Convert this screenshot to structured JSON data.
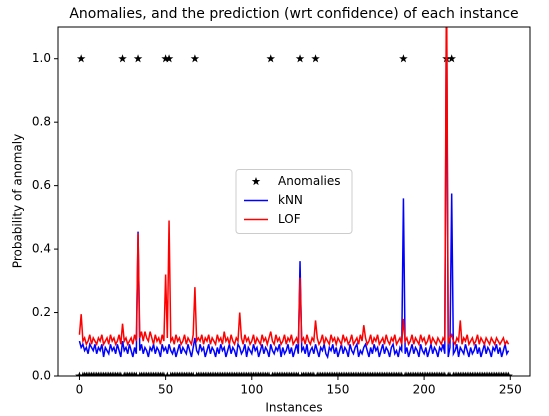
{
  "chart_data": {
    "type": "line",
    "title": "Anomalies, and the prediction (wrt confidence) of each instance",
    "x_label": "Instances",
    "y_label": "Probability of anomaly",
    "legend": "center",
    "xlim": [
      -12.45,
      261.45
    ],
    "ylim": [
      0,
      1.1
    ],
    "xticks": [
      0,
      50,
      100,
      150,
      200,
      250
    ],
    "yticks": [
      {
        "value": 0,
        "label": "0.0"
      },
      {
        "value": 0.2,
        "label": "0.2"
      },
      {
        "value": 0.4,
        "label": "0.4"
      },
      {
        "value": 0.6,
        "label": "0.6"
      },
      {
        "value": 0.8,
        "label": "0.8"
      },
      {
        "value": 1,
        "label": "1.0"
      }
    ],
    "x": [
      0,
      1,
      2,
      3,
      4,
      5,
      6,
      7,
      8,
      9,
      10,
      11,
      12,
      13,
      14,
      15,
      16,
      17,
      18,
      19,
      20,
      21,
      22,
      23,
      24,
      25,
      26,
      27,
      28,
      29,
      30,
      31,
      32,
      33,
      34,
      35,
      36,
      37,
      38,
      39,
      40,
      41,
      42,
      43,
      44,
      45,
      46,
      47,
      48,
      49,
      50,
      51,
      52,
      53,
      54,
      55,
      56,
      57,
      58,
      59,
      60,
      61,
      62,
      63,
      64,
      65,
      66,
      67,
      68,
      69,
      70,
      71,
      72,
      73,
      74,
      75,
      76,
      77,
      78,
      79,
      80,
      81,
      82,
      83,
      84,
      85,
      86,
      87,
      88,
      89,
      90,
      91,
      92,
      93,
      94,
      95,
      96,
      97,
      98,
      99,
      100,
      101,
      102,
      103,
      104,
      105,
      106,
      107,
      108,
      109,
      110,
      111,
      112,
      113,
      114,
      115,
      116,
      117,
      118,
      119,
      120,
      121,
      122,
      123,
      124,
      125,
      126,
      127,
      128,
      129,
      130,
      131,
      132,
      133,
      134,
      135,
      136,
      137,
      138,
      139,
      140,
      141,
      142,
      143,
      144,
      145,
      146,
      147,
      148,
      149,
      150,
      151,
      152,
      153,
      154,
      155,
      156,
      157,
      158,
      159,
      160,
      161,
      162,
      163,
      164,
      165,
      166,
      167,
      168,
      169,
      170,
      171,
      172,
      173,
      174,
      175,
      176,
      177,
      178,
      179,
      180,
      181,
      182,
      183,
      184,
      185,
      186,
      187,
      188,
      189,
      190,
      191,
      192,
      193,
      194,
      195,
      196,
      197,
      198,
      199,
      200,
      201,
      202,
      203,
      204,
      205,
      206,
      207,
      208,
      209,
      210,
      211,
      212,
      213,
      214,
      215,
      216,
      217,
      218,
      219,
      220,
      221,
      222,
      223,
      224,
      225,
      226,
      227,
      228,
      229,
      230,
      231,
      232,
      233,
      234,
      235,
      236,
      237,
      238,
      239,
      240,
      241,
      242,
      243,
      244,
      245,
      246,
      247,
      248,
      249
    ],
    "series": [
      {
        "name": "Anomalies",
        "color": "#000000",
        "marker": "star",
        "values": [
          0,
          1,
          0,
          0,
          0,
          0,
          0,
          0,
          0,
          0,
          0,
          0,
          0,
          0,
          0,
          0,
          0,
          0,
          0,
          0,
          0,
          0,
          0,
          0,
          0,
          1,
          0,
          0,
          0,
          0,
          0,
          0,
          0,
          0,
          1,
          0,
          0,
          0,
          0,
          0,
          0,
          0,
          0,
          0,
          0,
          0,
          0,
          0,
          0,
          0,
          1,
          0,
          1,
          0,
          0,
          0,
          0,
          0,
          0,
          0,
          0,
          0,
          0,
          0,
          0,
          0,
          0,
          1,
          0,
          0,
          0,
          0,
          0,
          0,
          0,
          0,
          0,
          0,
          0,
          0,
          0,
          0,
          0,
          0,
          0,
          0,
          0,
          0,
          0,
          0,
          0,
          0,
          0,
          0,
          0,
          0,
          0,
          0,
          0,
          0,
          0,
          0,
          0,
          0,
          0,
          0,
          0,
          0,
          0,
          0,
          0,
          1,
          0,
          0,
          0,
          0,
          0,
          0,
          0,
          0,
          0,
          0,
          0,
          0,
          0,
          0,
          0,
          0,
          1,
          0,
          0,
          0,
          0,
          0,
          0,
          0,
          0,
          1,
          0,
          0,
          0,
          0,
          0,
          0,
          0,
          0,
          0,
          0,
          0,
          0,
          0,
          0,
          0,
          0,
          0,
          0,
          0,
          0,
          0,
          0,
          0,
          0,
          0,
          0,
          0,
          0,
          0,
          0,
          0,
          0,
          0,
          0,
          0,
          0,
          0,
          0,
          0,
          0,
          0,
          0,
          0,
          0,
          0,
          0,
          0,
          0,
          0,
          0,
          1,
          0,
          0,
          0,
          0,
          0,
          0,
          0,
          0,
          0,
          0,
          0,
          0,
          0,
          0,
          0,
          0,
          0,
          0,
          0,
          0,
          0,
          0,
          0,
          0,
          1,
          0,
          0,
          1,
          0,
          0,
          0,
          0,
          0,
          0,
          0,
          0,
          0,
          0,
          0,
          0,
          0,
          0,
          0,
          0,
          0,
          0,
          0,
          0,
          0,
          0,
          0,
          0,
          0,
          0,
          0,
          0,
          0,
          0,
          0,
          0,
          0
        ]
      },
      {
        "name": "kNN",
        "color": "#0000ff",
        "values": [
          0.11,
          0.09,
          0.1,
          0.08,
          0.09,
          0.07,
          0.1,
          0.09,
          0.08,
          0.1,
          0.07,
          0.09,
          0.08,
          0.1,
          0.06,
          0.09,
          0.08,
          0.07,
          0.1,
          0.08,
          0.09,
          0.07,
          0.1,
          0.08,
          0.06,
          0.11,
          0.08,
          0.09,
          0.07,
          0.1,
          0.08,
          0.06,
          0.09,
          0.07,
          0.455,
          0.08,
          0.1,
          0.07,
          0.09,
          0.08,
          0.06,
          0.09,
          0.08,
          0.1,
          0.07,
          0.09,
          0.08,
          0.06,
          0.1,
          0.08,
          0.09,
          0.07,
          0.1,
          0.08,
          0.07,
          0.09,
          0.06,
          0.08,
          0.1,
          0.07,
          0.09,
          0.08,
          0.07,
          0.1,
          0.08,
          0.06,
          0.09,
          0.12,
          0.08,
          0.07,
          0.1,
          0.08,
          0.09,
          0.06,
          0.08,
          0.1,
          0.07,
          0.09,
          0.08,
          0.06,
          0.09,
          0.07,
          0.1,
          0.08,
          0.09,
          0.06,
          0.08,
          0.1,
          0.07,
          0.09,
          0.08,
          0.06,
          0.1,
          0.09,
          0.07,
          0.08,
          0.1,
          0.06,
          0.09,
          0.08,
          0.07,
          0.1,
          0.08,
          0.09,
          0.06,
          0.08,
          0.1,
          0.07,
          0.09,
          0.08,
          0.06,
          0.1,
          0.08,
          0.07,
          0.09,
          0.08,
          0.1,
          0.06,
          0.09,
          0.07,
          0.08,
          0.1,
          0.07,
          0.09,
          0.06,
          0.08,
          0.1,
          0.07,
          0.362,
          0.08,
          0.09,
          0.07,
          0.1,
          0.06,
          0.08,
          0.09,
          0.07,
          0.1,
          0.08,
          0.06,
          0.09,
          0.08,
          0.1,
          0.07,
          0.06,
          0.09,
          0.08,
          0.1,
          0.07,
          0.09,
          0.06,
          0.08,
          0.1,
          0.07,
          0.09,
          0.08,
          0.06,
          0.1,
          0.08,
          0.07,
          0.09,
          0.1,
          0.06,
          0.08,
          0.07,
          0.09,
          0.1,
          0.08,
          0.06,
          0.09,
          0.07,
          0.1,
          0.08,
          0.09,
          0.06,
          0.08,
          0.1,
          0.07,
          0.09,
          0.08,
          0.06,
          0.09,
          0.1,
          0.07,
          0.08,
          0.06,
          0.09,
          0.08,
          0.56,
          0.07,
          0.09,
          0.06,
          0.08,
          0.1,
          0.07,
          0.09,
          0.08,
          0.06,
          0.1,
          0.08,
          0.07,
          0.09,
          0.06,
          0.08,
          0.1,
          0.07,
          0.09,
          0.08,
          0.06,
          0.09,
          0.08,
          0.1,
          0.07,
          1.2,
          0.06,
          0.09,
          0.575,
          0.07,
          0.08,
          0.1,
          0.06,
          0.09,
          0.08,
          0.07,
          0.1,
          0.08,
          0.06,
          0.09,
          0.07,
          0.08,
          0.1,
          0.07,
          0.09,
          0.06,
          0.08,
          0.1,
          0.07,
          0.09,
          0.08,
          0.06,
          0.09,
          0.08,
          0.1,
          0.07,
          0.09,
          0.06,
          0.08,
          0.1,
          0.07,
          0.08
        ]
      },
      {
        "name": "LOF",
        "color": "#ff0000",
        "values": [
          0.13,
          0.195,
          0.11,
          0.12,
          0.1,
          0.11,
          0.13,
          0.1,
          0.12,
          0.11,
          0.1,
          0.12,
          0.11,
          0.13,
          0.1,
          0.11,
          0.12,
          0.1,
          0.13,
          0.11,
          0.12,
          0.1,
          0.11,
          0.13,
          0.1,
          0.165,
          0.11,
          0.12,
          0.1,
          0.11,
          0.12,
          0.1,
          0.13,
          0.11,
          0.45,
          0.12,
          0.14,
          0.11,
          0.14,
          0.12,
          0.11,
          0.14,
          0.12,
          0.1,
          0.13,
          0.11,
          0.12,
          0.1,
          0.13,
          0.11,
          0.32,
          0.12,
          0.49,
          0.11,
          0.12,
          0.1,
          0.13,
          0.11,
          0.12,
          0.1,
          0.11,
          0.13,
          0.1,
          0.12,
          0.11,
          0.1,
          0.13,
          0.28,
          0.11,
          0.12,
          0.11,
          0.13,
          0.1,
          0.12,
          0.11,
          0.13,
          0.1,
          0.12,
          0.11,
          0.1,
          0.13,
          0.11,
          0.12,
          0.1,
          0.14,
          0.11,
          0.12,
          0.1,
          0.13,
          0.11,
          0.1,
          0.12,
          0.11,
          0.2,
          0.12,
          0.1,
          0.13,
          0.11,
          0.12,
          0.1,
          0.11,
          0.13,
          0.1,
          0.12,
          0.11,
          0.1,
          0.13,
          0.11,
          0.12,
          0.1,
          0.12,
          0.14,
          0.11,
          0.1,
          0.13,
          0.11,
          0.12,
          0.1,
          0.11,
          0.13,
          0.1,
          0.12,
          0.11,
          0.13,
          0.1,
          0.11,
          0.12,
          0.1,
          0.31,
          0.11,
          0.12,
          0.1,
          0.13,
          0.11,
          0.1,
          0.12,
          0.11,
          0.175,
          0.12,
          0.1,
          0.11,
          0.13,
          0.1,
          0.12,
          0.11,
          0.1,
          0.13,
          0.11,
          0.12,
          0.1,
          0.12,
          0.11,
          0.1,
          0.13,
          0.11,
          0.12,
          0.1,
          0.11,
          0.13,
          0.1,
          0.11,
          0.12,
          0.1,
          0.13,
          0.11,
          0.16,
          0.12,
          0.1,
          0.11,
          0.13,
          0.1,
          0.12,
          0.11,
          0.13,
          0.1,
          0.11,
          0.12,
          0.1,
          0.13,
          0.11,
          0.1,
          0.12,
          0.11,
          0.13,
          0.1,
          0.11,
          0.12,
          0.1,
          0.18,
          0.11,
          0.12,
          0.1,
          0.11,
          0.13,
          0.1,
          0.12,
          0.11,
          0.1,
          0.13,
          0.11,
          0.12,
          0.1,
          0.11,
          0.13,
          0.1,
          0.12,
          0.11,
          0.1,
          0.12,
          0.11,
          0.1,
          0.12,
          0.11,
          1.3,
          0.1,
          0.12,
          0.13,
          0.11,
          0.1,
          0.12,
          0.11,
          0.175,
          0.1,
          0.12,
          0.11,
          0.13,
          0.1,
          0.11,
          0.12,
          0.1,
          0.11,
          0.13,
          0.1,
          0.12,
          0.11,
          0.1,
          0.12,
          0.11,
          0.1,
          0.12,
          0.11,
          0.1,
          0.12,
          0.11,
          0.1,
          0.11,
          0.12,
          0.1,
          0.11,
          0.1
        ]
      }
    ]
  }
}
